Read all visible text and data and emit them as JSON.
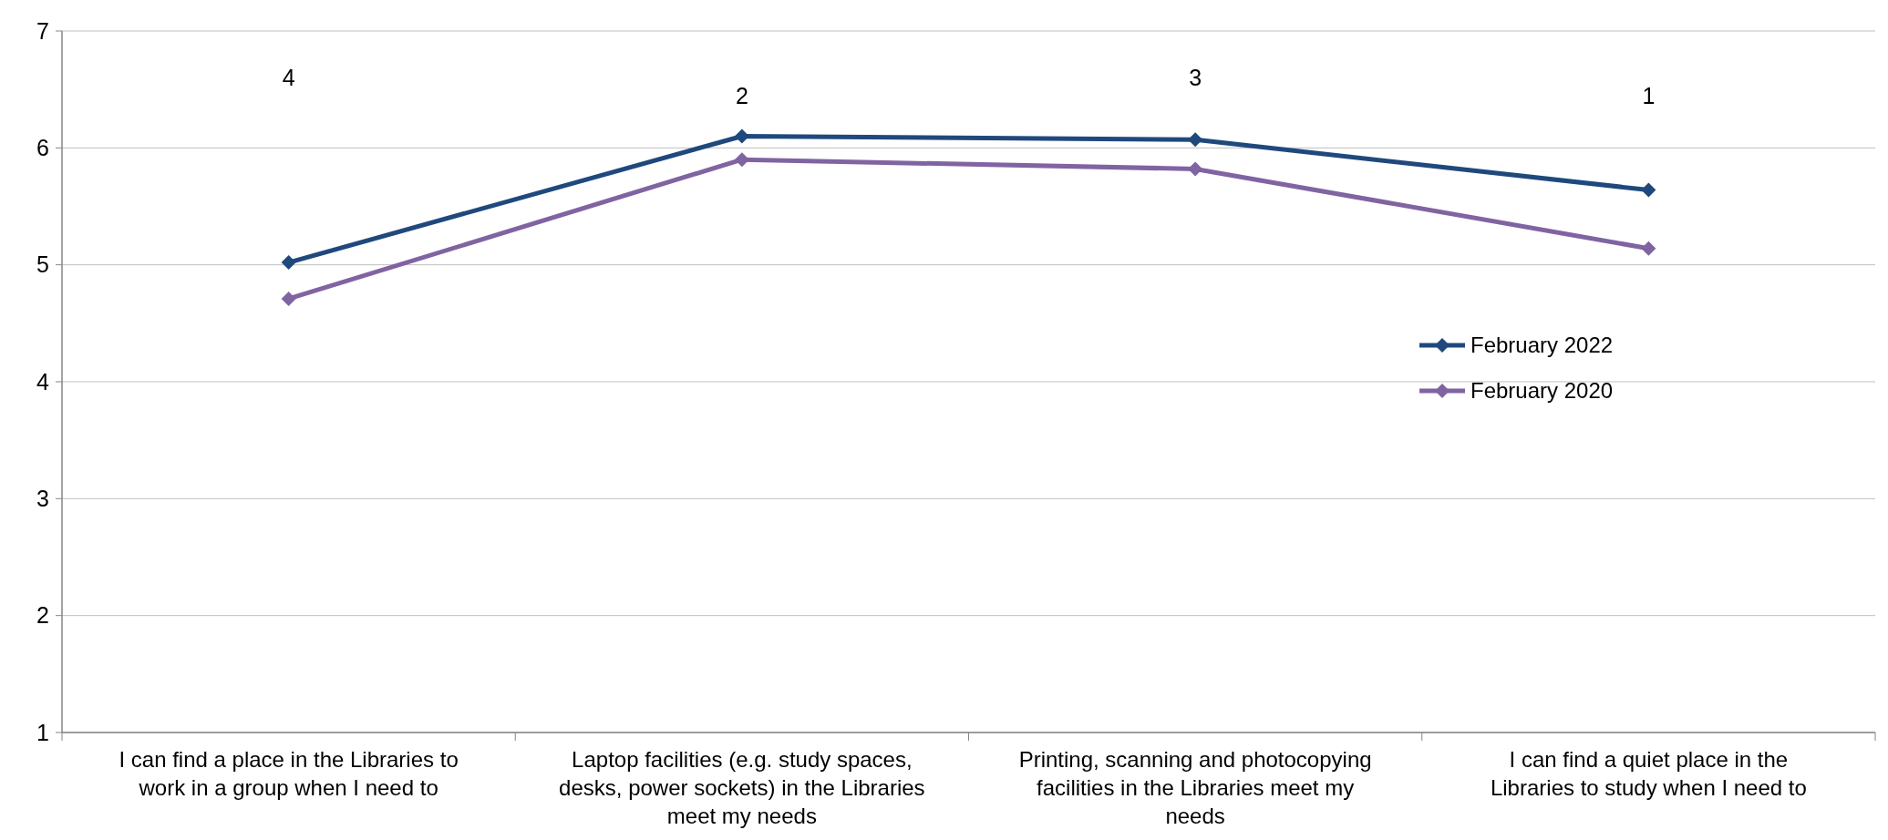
{
  "chart_data": {
    "type": "line",
    "categories": [
      "I can find a place in the Libraries to work in a group when I need to",
      "Laptop facilities (e.g. study spaces, desks, power sockets) in the Libraries meet my needs",
      "Printing, scanning and photocopying facilities in the Libraries meet my needs",
      "I can find a quiet place in the Libraries to study when I need to"
    ],
    "series": [
      {
        "name": "February 2022",
        "color": "#1f497d",
        "values": [
          5.02,
          6.1,
          6.07,
          5.64
        ]
      },
      {
        "name": "February 2020",
        "color": "#8064a2",
        "values": [
          4.71,
          5.9,
          5.82,
          5.14
        ]
      }
    ],
    "ylim": [
      1,
      7
    ],
    "yticks": [
      1,
      2,
      3,
      4,
      5,
      6,
      7
    ],
    "grid": "y",
    "legend": "right",
    "marker": "diamond",
    "line_style": "solid",
    "annotations": [
      "4",
      "2",
      "3",
      "1"
    ]
  }
}
